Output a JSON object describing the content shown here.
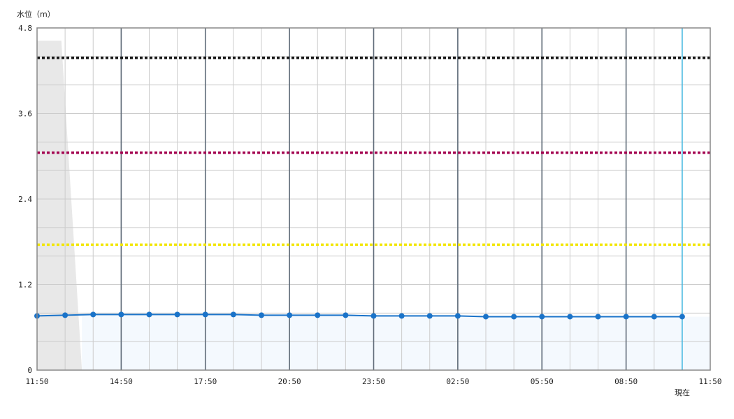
{
  "chart_data": {
    "type": "line",
    "ylabel": "水位（m）",
    "ylim": [
      0,
      4.8
    ],
    "yticks": [
      "0",
      "1.2",
      "2.4",
      "3.6",
      "4.8"
    ],
    "xticks": [
      "11:50",
      "14:50",
      "17:50",
      "20:50",
      "23:50",
      "02:50",
      "05:50",
      "08:50",
      "11:50"
    ],
    "now_label": "現在",
    "grid": true,
    "x": [
      "11:50",
      "12:50",
      "13:50",
      "14:50",
      "15:50",
      "16:50",
      "17:50",
      "18:50",
      "19:50",
      "20:50",
      "21:50",
      "22:50",
      "23:50",
      "00:50",
      "01:50",
      "02:50",
      "03:50",
      "04:50",
      "05:50",
      "06:50",
      "07:50",
      "08:50",
      "09:50",
      "10:50"
    ],
    "series": [
      {
        "color": "#1a73c9",
        "values": [
          0.76,
          0.77,
          0.78,
          0.78,
          0.78,
          0.78,
          0.78,
          0.78,
          0.77,
          0.77,
          0.77,
          0.77,
          0.76,
          0.76,
          0.76,
          0.76,
          0.75,
          0.75,
          0.75,
          0.75,
          0.75,
          0.75,
          0.75,
          0.75
        ]
      }
    ],
    "threshold_lines": [
      {
        "value": 4.38,
        "color": "#111111"
      },
      {
        "value": 3.05,
        "color": "#a3004f"
      },
      {
        "value": 1.76,
        "color": "#f2e600"
      }
    ],
    "gray_band": {
      "top_value": 4.62,
      "color": "#e8e8e8"
    },
    "colors": {
      "axis": "#888888",
      "major_grid": "#5f6b78",
      "minor_grid": "#cccccc",
      "now_line": "#3fb6e0",
      "area_fill": "#f4f9fe"
    }
  }
}
